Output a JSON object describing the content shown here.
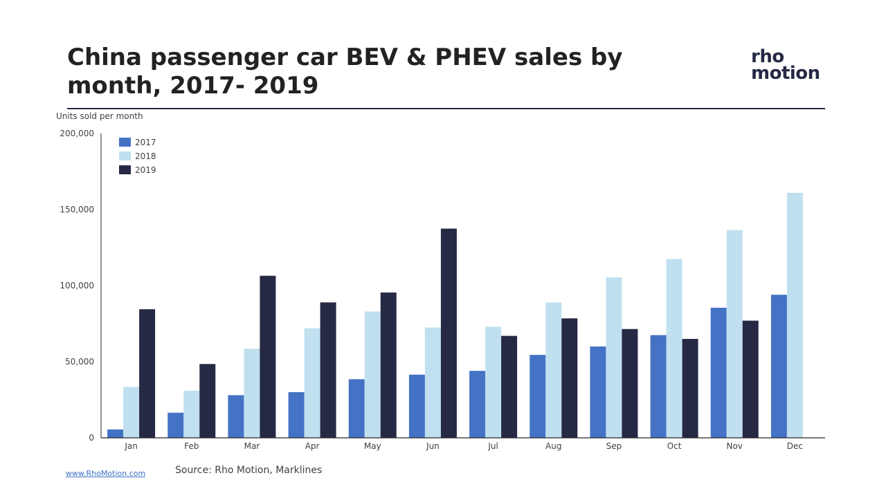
{
  "header": {
    "title": "China passenger car BEV & PHEV sales by month, 2017- 2019",
    "logo_line1": "rho",
    "logo_line2": "motion"
  },
  "footer": {
    "link": "www.RhoMotion.com",
    "source": "Source: Rho Motion, Marklines"
  },
  "colors": {
    "2017": "#4472c4",
    "2018": "#c0e0ef",
    "2019": "#262944",
    "rule": "#262944"
  },
  "chart_data": {
    "type": "bar",
    "ylabel": "Units sold per month",
    "ylim": [
      0,
      200000
    ],
    "yticks": [
      0,
      50000,
      100000,
      150000,
      200000
    ],
    "ytick_labels": [
      "0",
      "50,000",
      "100,000",
      "150,000",
      "200,000"
    ],
    "legend_placement": "top-left",
    "categories": [
      "Jan",
      "Feb",
      "Mar",
      "Apr",
      "May",
      "Jun",
      "Jul",
      "Aug",
      "Sep",
      "Oct",
      "Nov",
      "Dec"
    ],
    "series": [
      {
        "name": "2017",
        "values": [
          5500,
          16500,
          28000,
          30000,
          38500,
          41500,
          44000,
          54500,
          60000,
          67500,
          85500,
          94000
        ]
      },
      {
        "name": "2018",
        "values": [
          33500,
          31000,
          58500,
          72000,
          83000,
          72500,
          73000,
          89000,
          105500,
          117500,
          136500,
          161000
        ]
      },
      {
        "name": "2019",
        "values": [
          84500,
          48500,
          106500,
          89000,
          95500,
          137500,
          67000,
          78500,
          71500,
          65000,
          77000,
          null
        ]
      }
    ]
  }
}
